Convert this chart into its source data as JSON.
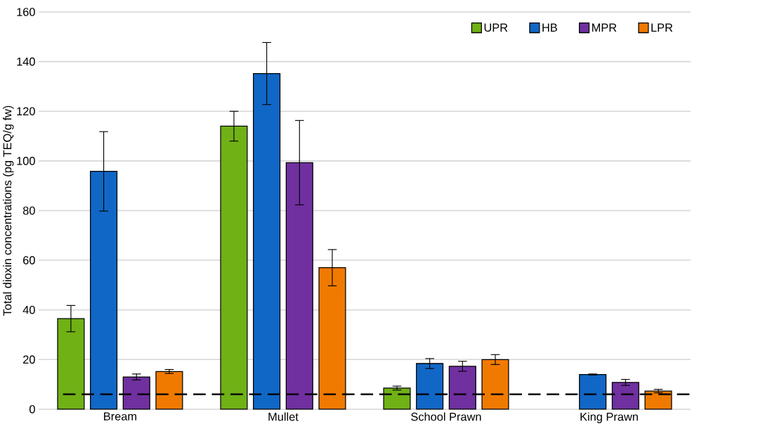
{
  "chart_data": {
    "type": "bar",
    "ylabel": "Total dioxin concentrations (pg TEQ/g fw)",
    "categories": [
      "Bream",
      "Mullet",
      "School Prawn",
      "King Prawn"
    ],
    "series": [
      {
        "name": "UPR",
        "color": "#70b116",
        "values": [
          36.5,
          114,
          8.5,
          null
        ],
        "errors": [
          5.3,
          6,
          0.8,
          null
        ]
      },
      {
        "name": "HB",
        "color": "#1167c6",
        "values": [
          95.8,
          135.2,
          18.4,
          14
        ],
        "errors": [
          16,
          12.5,
          2,
          0.2
        ]
      },
      {
        "name": "MPR",
        "color": "#7030a0",
        "values": [
          13,
          99.3,
          17.3,
          10.8
        ],
        "errors": [
          1.2,
          17,
          2,
          1.2
        ]
      },
      {
        "name": "LPR",
        "color": "#f07a00",
        "values": [
          15.2,
          57,
          20,
          7.3
        ],
        "errors": [
          0.8,
          7.3,
          2,
          0.7
        ]
      }
    ],
    "ylim": [
      0,
      160
    ],
    "yticks": [
      0,
      20,
      40,
      60,
      80,
      100,
      120,
      140,
      160
    ],
    "grid": "y",
    "legend": "top right",
    "ref_lines": [
      {
        "axis": "y",
        "value": 6,
        "line_style": "dashed",
        "color": "#000000"
      }
    ]
  }
}
